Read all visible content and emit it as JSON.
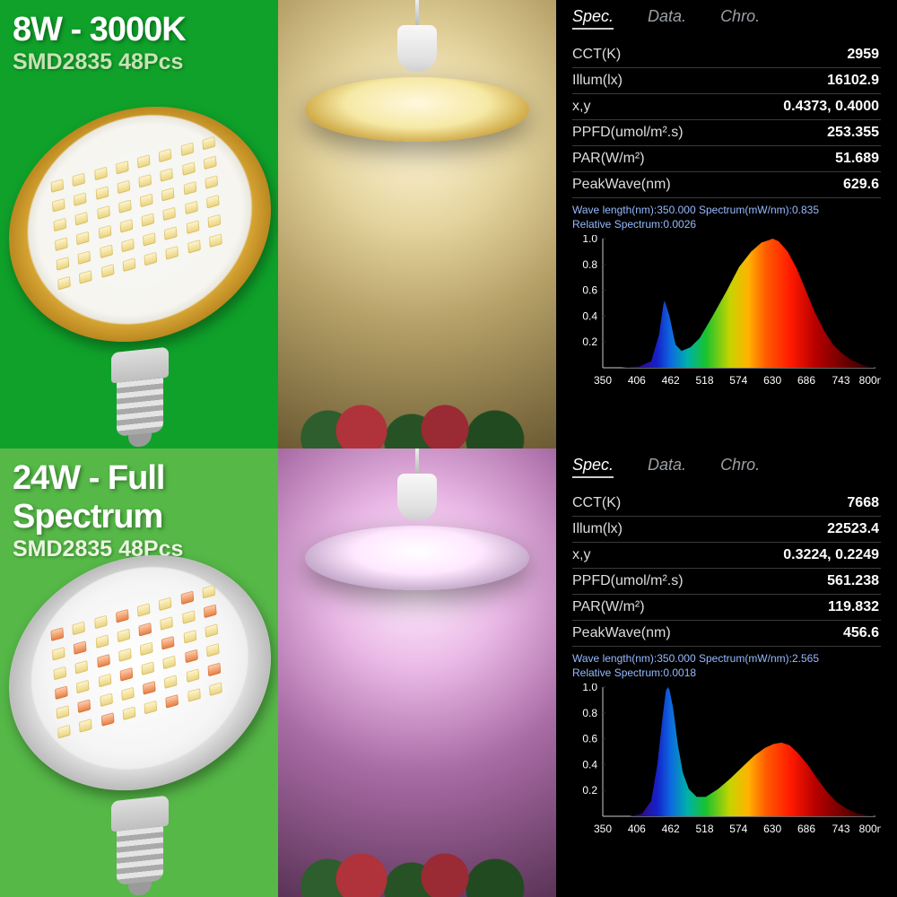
{
  "row1": {
    "bg_left": "#0fa12a",
    "title": "8W - 3000K",
    "subtitle": "SMD2835 48Pcs",
    "bulb_style": "gold",
    "led_style": "warm",
    "scene": "warm",
    "spec": {
      "tabs": {
        "active": "Spec.",
        "t2": "Data.",
        "t3": "Chro."
      },
      "rows": [
        {
          "label": "CCT(K)",
          "value": "2959"
        },
        {
          "label": "Illum(lx)",
          "value": "16102.9"
        },
        {
          "label": "x,y",
          "value": "0.4373, 0.4000"
        },
        {
          "label": "PPFD(umol/m².s)",
          "value": "253.355"
        },
        {
          "label": "PAR(W/m²)",
          "value": "51.689"
        },
        {
          "label": "PeakWave(nm)",
          "value": "629.6"
        }
      ],
      "meta_line1": "Wave length(nm):350.000   Spectrum(mW/nm):0.835",
      "meta_line2": "Relative Spectrum:0.0026",
      "chart": {
        "background": "#000000",
        "axis_color": "#cccccc",
        "x_range": [
          350,
          800
        ],
        "x_ticks": [
          350,
          406,
          462,
          518,
          574,
          630,
          686,
          743,
          800
        ],
        "x_unit": "nm",
        "y_range": [
          0,
          1.0
        ],
        "y_ticks": [
          0.2,
          0.4,
          0.6,
          0.8,
          1.0
        ],
        "gradient_stops": [
          {
            "nm": 350,
            "color": "#000000"
          },
          {
            "nm": 400,
            "color": "#3a006c"
          },
          {
            "nm": 440,
            "color": "#1522c9"
          },
          {
            "nm": 462,
            "color": "#0d69e0"
          },
          {
            "nm": 490,
            "color": "#00b1a9"
          },
          {
            "nm": 520,
            "color": "#19c22e"
          },
          {
            "nm": 560,
            "color": "#c6d400"
          },
          {
            "nm": 590,
            "color": "#ffb300"
          },
          {
            "nm": 620,
            "color": "#ff5a00"
          },
          {
            "nm": 660,
            "color": "#ff1a00"
          },
          {
            "nm": 700,
            "color": "#b80000"
          },
          {
            "nm": 780,
            "color": "#3d0000"
          },
          {
            "nm": 800,
            "color": "#000000"
          }
        ],
        "curve": [
          [
            350,
            0.0
          ],
          [
            380,
            0.0
          ],
          [
            410,
            0.01
          ],
          [
            430,
            0.05
          ],
          [
            443,
            0.26
          ],
          [
            450,
            0.49
          ],
          [
            452,
            0.52
          ],
          [
            460,
            0.4
          ],
          [
            470,
            0.18
          ],
          [
            480,
            0.13
          ],
          [
            495,
            0.16
          ],
          [
            510,
            0.23
          ],
          [
            530,
            0.39
          ],
          [
            555,
            0.6
          ],
          [
            575,
            0.78
          ],
          [
            595,
            0.9
          ],
          [
            612,
            0.97
          ],
          [
            625,
            0.99
          ],
          [
            630,
            1.0
          ],
          [
            640,
            0.98
          ],
          [
            655,
            0.9
          ],
          [
            670,
            0.77
          ],
          [
            685,
            0.6
          ],
          [
            700,
            0.43
          ],
          [
            715,
            0.29
          ],
          [
            730,
            0.18
          ],
          [
            745,
            0.11
          ],
          [
            760,
            0.06
          ],
          [
            780,
            0.02
          ],
          [
            800,
            0.0
          ]
        ]
      }
    }
  },
  "row2": {
    "bg_left": "#55b847",
    "title": "24W - Full Spectrum",
    "subtitle": "SMD2835 48Pcs",
    "bulb_style": "silver",
    "led_style": "mix",
    "scene": "pink",
    "spec": {
      "tabs": {
        "active": "Spec.",
        "t2": "Data.",
        "t3": "Chro."
      },
      "rows": [
        {
          "label": "CCT(K)",
          "value": "7668"
        },
        {
          "label": "Illum(lx)",
          "value": "22523.4"
        },
        {
          "label": "x,y",
          "value": "0.3224, 0.2249"
        },
        {
          "label": "PPFD(umol/m².s)",
          "value": "561.238"
        },
        {
          "label": "PAR(W/m²)",
          "value": "119.832"
        },
        {
          "label": "PeakWave(nm)",
          "value": "456.6"
        }
      ],
      "meta_line1": "Wave length(nm):350.000   Spectrum(mW/nm):2.565",
      "meta_line2": "Relative Spectrum:0.0018",
      "chart": {
        "background": "#000000",
        "axis_color": "#cccccc",
        "x_range": [
          350,
          800
        ],
        "x_ticks": [
          350,
          406,
          462,
          518,
          574,
          630,
          686,
          743,
          800
        ],
        "x_unit": "nm",
        "y_range": [
          0,
          1.0
        ],
        "y_ticks": [
          0.2,
          0.4,
          0.6,
          0.8,
          1.0
        ],
        "gradient_stops": [
          {
            "nm": 350,
            "color": "#000000"
          },
          {
            "nm": 400,
            "color": "#3a006c"
          },
          {
            "nm": 440,
            "color": "#1522c9"
          },
          {
            "nm": 462,
            "color": "#0d69e0"
          },
          {
            "nm": 490,
            "color": "#00b1a9"
          },
          {
            "nm": 520,
            "color": "#19c22e"
          },
          {
            "nm": 560,
            "color": "#c6d400"
          },
          {
            "nm": 590,
            "color": "#ffb300"
          },
          {
            "nm": 620,
            "color": "#ff5a00"
          },
          {
            "nm": 660,
            "color": "#ff1a00"
          },
          {
            "nm": 700,
            "color": "#b80000"
          },
          {
            "nm": 780,
            "color": "#3d0000"
          },
          {
            "nm": 800,
            "color": "#000000"
          }
        ],
        "curve": [
          [
            350,
            0.0
          ],
          [
            395,
            0.0
          ],
          [
            415,
            0.02
          ],
          [
            430,
            0.12
          ],
          [
            440,
            0.4
          ],
          [
            449,
            0.78
          ],
          [
            454,
            0.97
          ],
          [
            457,
            1.0
          ],
          [
            460,
            0.98
          ],
          [
            466,
            0.84
          ],
          [
            474,
            0.55
          ],
          [
            482,
            0.34
          ],
          [
            492,
            0.21
          ],
          [
            505,
            0.15
          ],
          [
            520,
            0.15
          ],
          [
            540,
            0.21
          ],
          [
            560,
            0.29
          ],
          [
            580,
            0.38
          ],
          [
            600,
            0.47
          ],
          [
            618,
            0.53
          ],
          [
            632,
            0.56
          ],
          [
            645,
            0.57
          ],
          [
            658,
            0.55
          ],
          [
            672,
            0.49
          ],
          [
            688,
            0.4
          ],
          [
            704,
            0.29
          ],
          [
            720,
            0.19
          ],
          [
            736,
            0.11
          ],
          [
            752,
            0.06
          ],
          [
            770,
            0.02
          ],
          [
            800,
            0.0
          ]
        ]
      }
    }
  }
}
